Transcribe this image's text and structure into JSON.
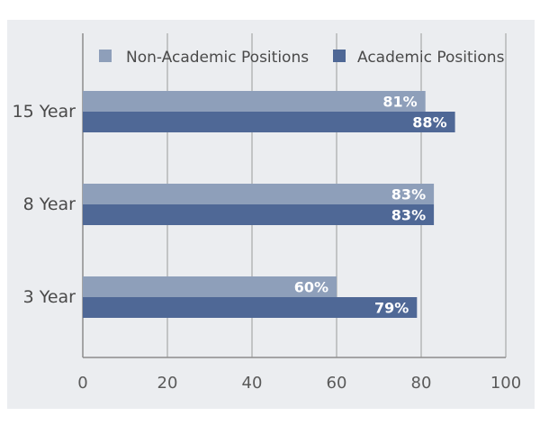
{
  "chart_data": {
    "type": "bar",
    "orientation": "horizontal",
    "categories": [
      "15 Year",
      "8 Year",
      "3 Year"
    ],
    "series": [
      {
        "name": "Non-Academic Positions",
        "values": [
          81,
          83,
          60
        ],
        "labels": [
          "81%",
          "83%",
          "60%"
        ],
        "color": "#8e9fba"
      },
      {
        "name": "Academic Positions",
        "values": [
          88,
          83,
          79
        ],
        "labels": [
          "88%",
          "83%",
          "79%"
        ],
        "color": "#4f6896"
      }
    ],
    "x_ticks": [
      "0",
      "20",
      "40",
      "60",
      "80",
      "100"
    ],
    "xlim": [
      0,
      100
    ],
    "grid": true,
    "legend": "top-right",
    "colors": {
      "background": "#ebedf0",
      "grid": "#9a9a9a",
      "axis": "#8c8c8c"
    }
  }
}
